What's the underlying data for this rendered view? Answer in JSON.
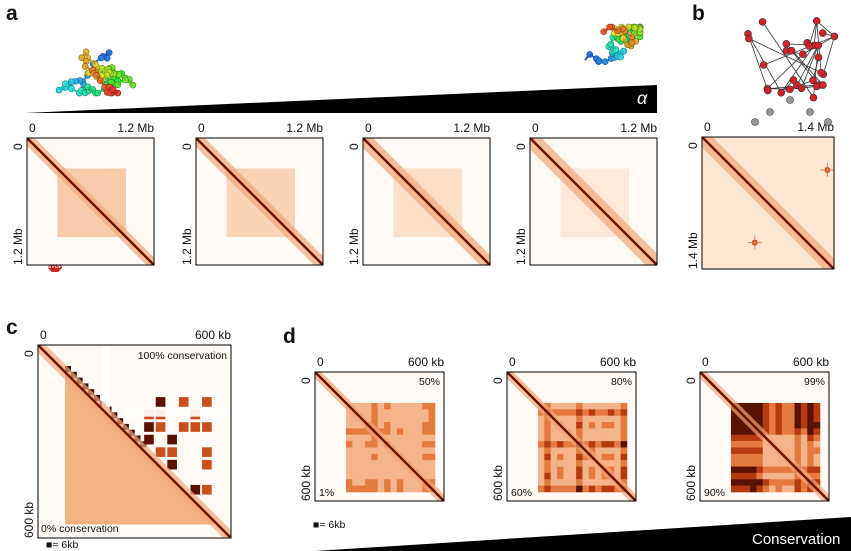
{
  "panels": {
    "a": {
      "label": "a",
      "alpha": "α",
      "stop": "STOP",
      "maps": [
        {
          "x_start": "0",
          "x_end": "1.2 Mb",
          "y_start": "0",
          "y_end": "1.2 Mb"
        },
        {
          "x_start": "0",
          "x_end": "1.2 Mb",
          "y_start": "0",
          "y_end": "1.2 Mb"
        },
        {
          "x_start": "0",
          "x_end": "1.2 Mb",
          "y_start": "0",
          "y_end": "1.2 Mb"
        },
        {
          "x_start": "0",
          "x_end": "1.2 Mb",
          "y_start": "0",
          "y_end": "1.2 Mb"
        }
      ]
    },
    "b": {
      "label": "b",
      "map": {
        "x_start": "0",
        "x_end": "1.4 Mb",
        "y_start": "0",
        "y_end": "1.4 Mb"
      }
    },
    "c": {
      "label": "c",
      "map": {
        "x_start": "0",
        "x_end": "600 kb",
        "y_start": "0",
        "y_end": "600 kb"
      },
      "top_note": "100% conservation",
      "bottom_note": "0% conservation",
      "scale": "■= 6kb"
    },
    "d": {
      "label": "d",
      "maps": [
        {
          "x_start": "0",
          "x_end": "600 kb",
          "y_start": "0",
          "y_end": "600 kb",
          "top_note": "50%",
          "bottom_note": "1%"
        },
        {
          "x_start": "0",
          "x_end": "600 kb",
          "y_start": "0",
          "y_end": "600 kb",
          "top_note": "80%",
          "bottom_note": "60%"
        },
        {
          "x_start": "0",
          "x_end": "600 kb",
          "y_start": "0",
          "y_end": "600 kb",
          "top_note": "99%",
          "bottom_note": "90%"
        }
      ],
      "scale": "■= 6kb",
      "ramp_label": "Conservation"
    }
  }
}
